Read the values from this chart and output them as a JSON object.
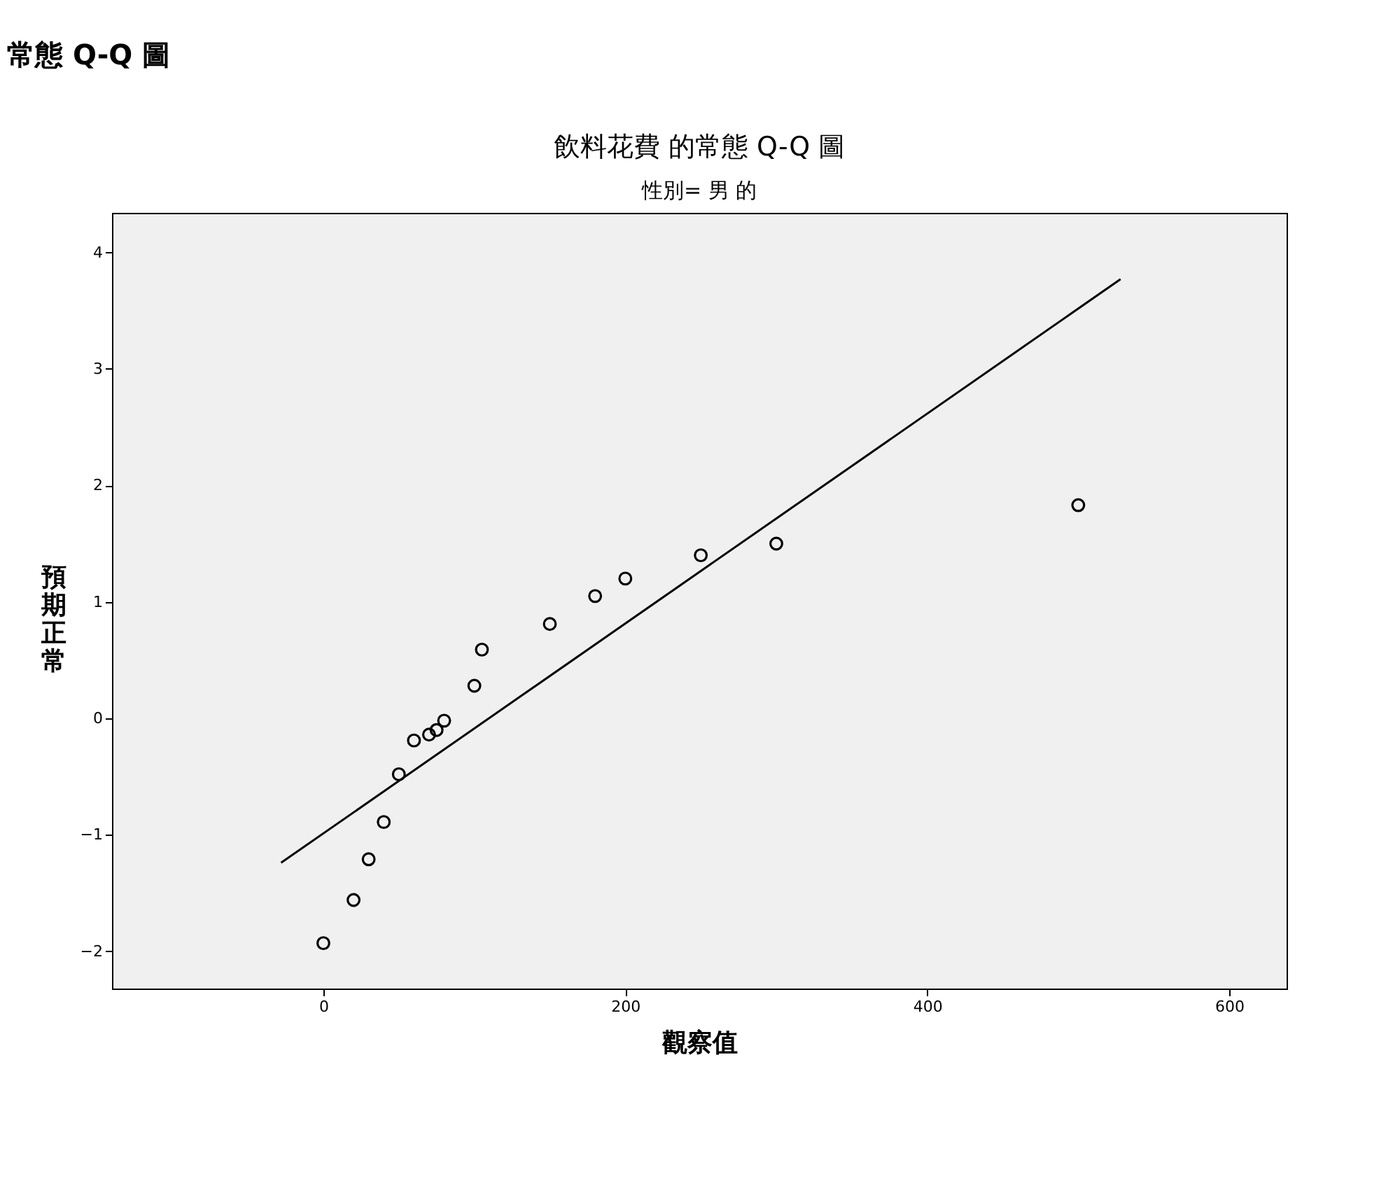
{
  "chart_data": {
    "type": "scatter",
    "title": "飲料花費 的常態 Q-Q 圖",
    "subtitle": "性別= 男 的",
    "xlabel": "觀察值",
    "ylabel": "預期正常",
    "annotations": [
      "常態 Q-Q 圖"
    ],
    "series": [
      {
        "color": "#000000",
        "x": [
          0,
          20,
          30,
          40,
          50,
          60,
          70,
          75,
          80,
          100,
          105,
          150,
          180,
          200,
          250,
          300,
          500
        ],
        "values": [
          -1.93,
          -1.56,
          -1.21,
          -0.89,
          -0.48,
          -0.19,
          -0.14,
          -0.1,
          -0.02,
          0.28,
          0.59,
          0.81,
          1.05,
          1.2,
          1.4,
          1.5,
          1.83
        ]
      },
      {
        "type": "line",
        "marker": "none",
        "color": "#000000",
        "x": [
          -28,
          528
        ],
        "values": [
          -1.24,
          3.77
        ]
      }
    ],
    "xlim": [
      -140,
      638
    ],
    "ylim": [
      -2.32,
      4.34
    ],
    "xticks": [
      0,
      200,
      400,
      600
    ],
    "yticks": [
      -2,
      -1,
      0,
      1,
      2,
      3,
      4
    ],
    "marker": "circle",
    "line_style": "solid",
    "grid": false
  }
}
